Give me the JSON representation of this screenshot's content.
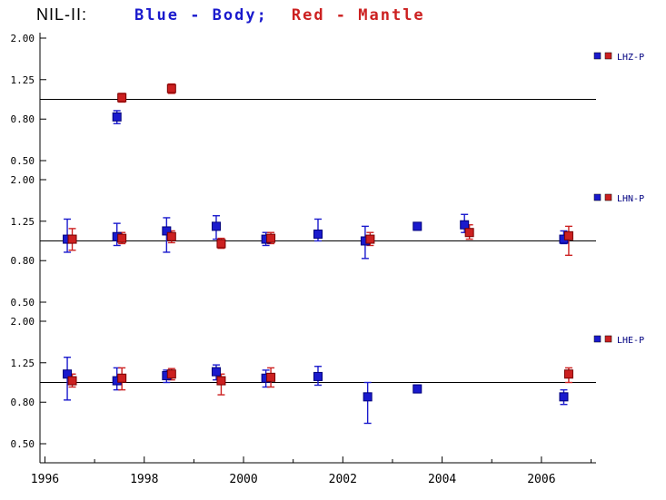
{
  "chart_data": {
    "type": "scatter",
    "title": "NIL-II:",
    "title_legend": [
      {
        "text": "Blue - Body;",
        "color": "#1a1acd"
      },
      {
        "text": "Red - Mantle",
        "color": "#cc2020"
      }
    ],
    "x_ticks": [
      1996,
      1998,
      2000,
      2002,
      2004,
      2006
    ],
    "xlim": [
      1995.9,
      2007.1
    ],
    "y_ticks": [
      "2.00",
      "1.25",
      "0.80",
      "0.50"
    ],
    "y_tick_values": [
      2.0,
      1.25,
      0.8,
      0.5
    ],
    "ylim": [
      0.5,
      2.0
    ],
    "yscale": "log",
    "reference_line": 1.0,
    "grid": false,
    "axis_color": "#000000",
    "legend_label_color": "#000080",
    "series_colors": {
      "body": "#1a1acd",
      "mantle": "#cc2020"
    },
    "panels": [
      {
        "label": "LHZ-P",
        "series": [
          {
            "name": "Body",
            "color": "#1a1acd",
            "points": [
              {
                "x": 1997.45,
                "y": 0.82,
                "lo": 0.76,
                "hi": 0.88
              }
            ]
          },
          {
            "name": "Mantle",
            "color": "#cc2020",
            "points": [
              {
                "x": 1997.55,
                "y": 1.02,
                "lo": 0.97,
                "hi": 1.07
              },
              {
                "x": 1998.55,
                "y": 1.13,
                "lo": 1.07,
                "hi": 1.19
              }
            ]
          }
        ]
      },
      {
        "label": "LHN-P",
        "series": [
          {
            "name": "Body",
            "color": "#1a1acd",
            "points": [
              {
                "x": 1996.45,
                "y": 1.02,
                "lo": 0.88,
                "hi": 1.28
              },
              {
                "x": 1997.45,
                "y": 1.05,
                "lo": 0.95,
                "hi": 1.22
              },
              {
                "x": 1998.45,
                "y": 1.12,
                "lo": 0.88,
                "hi": 1.3
              },
              {
                "x": 1999.45,
                "y": 1.18,
                "lo": 1.02,
                "hi": 1.33
              },
              {
                "x": 2000.45,
                "y": 1.02,
                "lo": 0.95,
                "hi": 1.1
              },
              {
                "x": 2001.5,
                "y": 1.08,
                "lo": 1.0,
                "hi": 1.28
              },
              {
                "x": 2002.45,
                "y": 1.0,
                "lo": 0.82,
                "hi": 1.18
              },
              {
                "x": 2003.5,
                "y": 1.18,
                "lo": 1.13,
                "hi": 1.23
              },
              {
                "x": 2004.45,
                "y": 1.2,
                "lo": 1.1,
                "hi": 1.35
              },
              {
                "x": 2006.45,
                "y": 1.02,
                "lo": 0.97,
                "hi": 1.12
              }
            ]
          },
          {
            "name": "Mantle",
            "color": "#cc2020",
            "points": [
              {
                "x": 1996.55,
                "y": 1.02,
                "lo": 0.9,
                "hi": 1.15
              },
              {
                "x": 1997.55,
                "y": 1.03,
                "lo": 0.97,
                "hi": 1.1
              },
              {
                "x": 1998.55,
                "y": 1.05,
                "lo": 0.98,
                "hi": 1.12
              },
              {
                "x": 1999.55,
                "y": 0.97,
                "lo": 0.92,
                "hi": 1.03
              },
              {
                "x": 2000.55,
                "y": 1.03,
                "lo": 0.97,
                "hi": 1.1
              },
              {
                "x": 2002.55,
                "y": 1.02,
                "lo": 0.95,
                "hi": 1.1
              },
              {
                "x": 2004.55,
                "y": 1.1,
                "lo": 1.02,
                "hi": 1.2
              },
              {
                "x": 2006.55,
                "y": 1.06,
                "lo": 0.85,
                "hi": 1.18
              }
            ]
          }
        ]
      },
      {
        "label": "LHE-P",
        "series": [
          {
            "name": "Body",
            "color": "#1a1acd",
            "points": [
              {
                "x": 1996.45,
                "y": 1.1,
                "lo": 0.82,
                "hi": 1.33
              },
              {
                "x": 1997.45,
                "y": 1.02,
                "lo": 0.92,
                "hi": 1.18
              },
              {
                "x": 1998.45,
                "y": 1.08,
                "lo": 1.0,
                "hi": 1.15
              },
              {
                "x": 1999.45,
                "y": 1.13,
                "lo": 1.03,
                "hi": 1.22
              },
              {
                "x": 2000.45,
                "y": 1.05,
                "lo": 0.95,
                "hi": 1.15
              },
              {
                "x": 2001.5,
                "y": 1.07,
                "lo": 0.97,
                "hi": 1.2
              },
              {
                "x": 2002.5,
                "y": 0.85,
                "lo": 0.63,
                "hi": 1.0
              },
              {
                "x": 2003.5,
                "y": 0.93,
                "lo": 0.89,
                "hi": 0.97
              },
              {
                "x": 2006.45,
                "y": 0.85,
                "lo": 0.78,
                "hi": 0.92
              }
            ]
          },
          {
            "name": "Mantle",
            "color": "#cc2020",
            "points": [
              {
                "x": 1996.55,
                "y": 1.02,
                "lo": 0.95,
                "hi": 1.1
              },
              {
                "x": 1997.55,
                "y": 1.05,
                "lo": 0.92,
                "hi": 1.18
              },
              {
                "x": 1998.55,
                "y": 1.1,
                "lo": 1.03,
                "hi": 1.17
              },
              {
                "x": 1999.55,
                "y": 1.02,
                "lo": 0.87,
                "hi": 1.1
              },
              {
                "x": 2000.55,
                "y": 1.06,
                "lo": 0.95,
                "hi": 1.18
              },
              {
                "x": 2006.55,
                "y": 1.1,
                "lo": 1.0,
                "hi": 1.18
              }
            ]
          }
        ]
      }
    ]
  }
}
